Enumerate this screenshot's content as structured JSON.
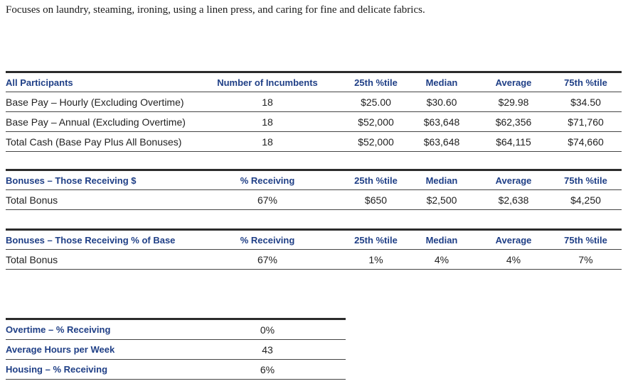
{
  "intro": "Focuses on laundry, steaming, ironing, using a linen press, and caring for fine and delicate fabrics.",
  "participants": {
    "headers": [
      "All Participants",
      "Number of Incumbents",
      "25th %tile",
      "Median",
      "Average",
      "75th %tile"
    ],
    "rows": [
      [
        "Base Pay – Hourly (Excluding Overtime)",
        "18",
        "$25.00",
        "$30.60",
        "$29.98",
        "$34.50"
      ],
      [
        "Base Pay – Annual (Excluding Overtime)",
        "18",
        "$52,000",
        "$63,648",
        "$62,356",
        "$71,760"
      ],
      [
        "Total Cash (Base Pay Plus All Bonuses)",
        "18",
        "$52,000",
        "$63,648",
        "$64,115",
        "$74,660"
      ]
    ]
  },
  "bonus_dollars": {
    "headers": [
      "Bonuses – Those Receiving $",
      "% Receiving",
      "25th %tile",
      "Median",
      "Average",
      "75th %tile"
    ],
    "rows": [
      [
        "Total Bonus",
        "67%",
        "$650",
        "$2,500",
        "$2,638",
        "$4,250"
      ]
    ]
  },
  "bonus_percent": {
    "headers": [
      "Bonuses – Those Receiving % of Base",
      "% Receiving",
      "25th %tile",
      "Median",
      "Average",
      "75th %tile"
    ],
    "rows": [
      [
        "Total Bonus",
        "67%",
        "1%",
        "4%",
        "4%",
        "7%"
      ]
    ]
  },
  "other": {
    "rows": [
      [
        "Overtime – % Receiving",
        "0%"
      ],
      [
        "Average Hours per Week",
        "43"
      ],
      [
        "Housing – % Receiving",
        "6%"
      ]
    ]
  }
}
